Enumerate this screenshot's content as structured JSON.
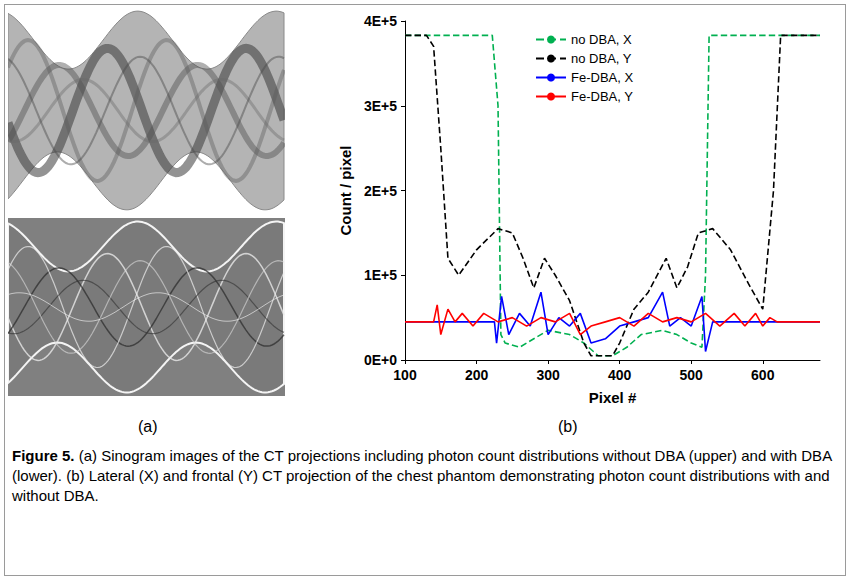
{
  "chart_data": {
    "type": "line",
    "x_label": "Pixel #",
    "y_label": "Count / pixel",
    "xlim": [
      100,
      680
    ],
    "xticks": [
      100,
      200,
      300,
      400,
      500,
      600
    ],
    "ylim": [
      0,
      400000
    ],
    "yticks": [
      {
        "value": 0,
        "label": "0E+0"
      },
      {
        "value": 100000,
        "label": "1E+5"
      },
      {
        "value": 200000,
        "label": "2E+5"
      },
      {
        "value": 300000,
        "label": "3E+5"
      },
      {
        "value": 400000,
        "label": "4E+5"
      }
    ],
    "grid": false,
    "legend": "top",
    "series": [
      {
        "name": "no DBA, X",
        "color": "#00b050",
        "line_style": "dashed",
        "x": [
          100,
          215,
          222,
          230,
          234,
          240,
          260,
          280,
          300,
          330,
          350,
          370,
          390,
          410,
          430,
          460,
          480,
          500,
          515,
          520,
          525,
          600,
          680
        ],
        "values": [
          383000,
          383000,
          383000,
          300000,
          30000,
          20000,
          15000,
          25000,
          35000,
          30000,
          20000,
          5000,
          5000,
          15000,
          30000,
          35000,
          30000,
          20000,
          15000,
          100000,
          383000,
          383000,
          383000
        ]
      },
      {
        "name": "no DBA, Y",
        "color": "#000000",
        "line_style": "dashed",
        "x": [
          100,
          130,
          140,
          150,
          160,
          175,
          200,
          230,
          250,
          265,
          280,
          295,
          310,
          330,
          350,
          360,
          390,
          400,
          420,
          440,
          465,
          480,
          495,
          510,
          530,
          555,
          580,
          600,
          615,
          625,
          680
        ],
        "values": [
          383000,
          383000,
          370000,
          250000,
          120000,
          100000,
          130000,
          155000,
          150000,
          120000,
          85000,
          120000,
          100000,
          70000,
          20000,
          5000,
          5000,
          20000,
          60000,
          80000,
          120000,
          85000,
          110000,
          150000,
          155000,
          130000,
          90000,
          60000,
          200000,
          383000,
          383000
        ]
      },
      {
        "name": "Fe-DBA, X",
        "color": "#0000ff",
        "line_style": "solid",
        "x": [
          100,
          225,
          228,
          235,
          245,
          260,
          275,
          290,
          300,
          315,
          330,
          345,
          360,
          380,
          400,
          420,
          440,
          460,
          470,
          485,
          500,
          515,
          520,
          530,
          680
        ],
        "values": [
          45000,
          45000,
          20000,
          75000,
          30000,
          55000,
          40000,
          80000,
          30000,
          50000,
          40000,
          55000,
          20000,
          25000,
          40000,
          45000,
          50000,
          80000,
          40000,
          50000,
          40000,
          75000,
          10000,
          45000,
          45000
        ]
      },
      {
        "name": "Fe-DBA, Y",
        "color": "#ff0000",
        "line_style": "solid",
        "x": [
          100,
          140,
          145,
          150,
          160,
          170,
          180,
          195,
          210,
          230,
          250,
          270,
          290,
          310,
          330,
          345,
          360,
          380,
          400,
          420,
          440,
          460,
          480,
          500,
          520,
          540,
          560,
          575,
          590,
          600,
          610,
          620,
          680
        ],
        "values": [
          45000,
          45000,
          65000,
          30000,
          60000,
          45000,
          55000,
          40000,
          55000,
          45000,
          50000,
          40000,
          50000,
          45000,
          55000,
          30000,
          40000,
          45000,
          50000,
          40000,
          55000,
          45000,
          50000,
          45000,
          55000,
          40000,
          55000,
          40000,
          55000,
          40000,
          50000,
          45000,
          45000
        ]
      }
    ]
  },
  "figure": {
    "panel_labels": [
      "(a)",
      "(b)"
    ],
    "caption": {
      "label": "Figure 5.",
      "text": "(a) Sinogram images of the CT projections including photon count distributions without DBA (upper) and with DBA (lower). (b) Lateral (X) and frontal (Y) CT projection of the chest phantom demonstrating photon count distributions with and without DBA."
    }
  }
}
